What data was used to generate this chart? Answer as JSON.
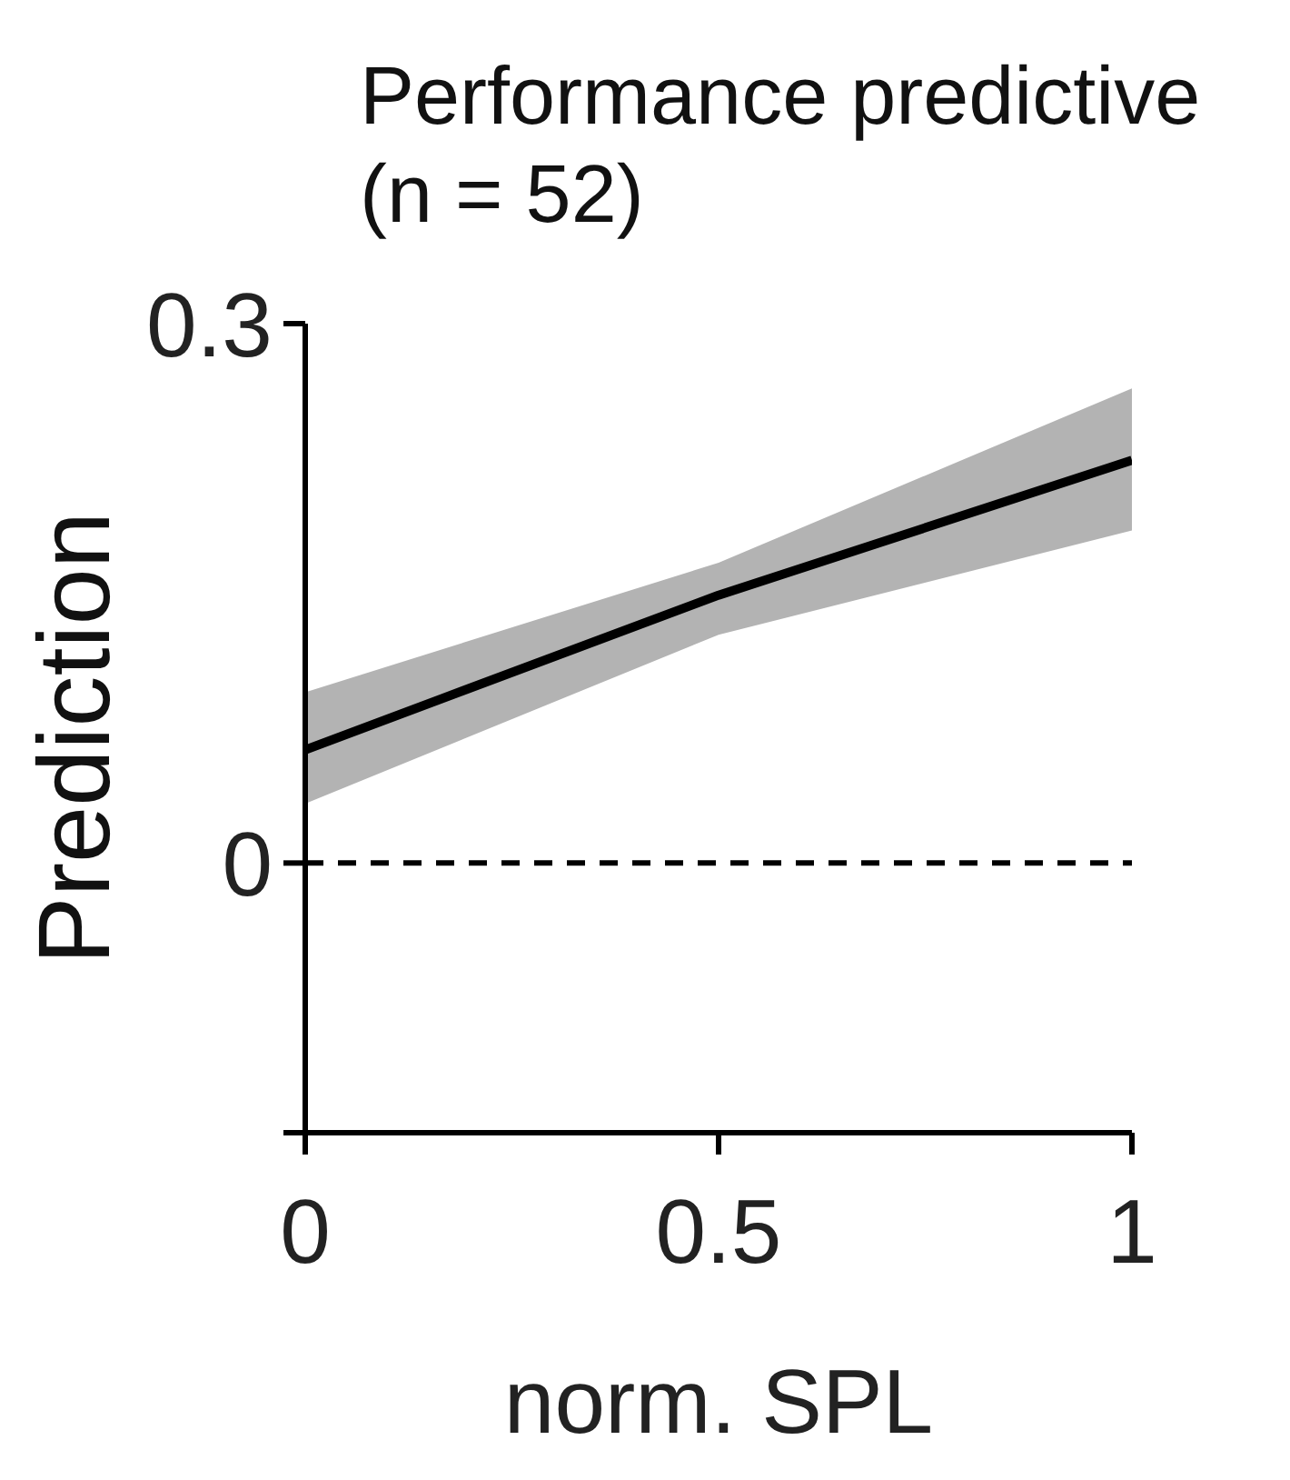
{
  "chart_data": {
    "type": "line",
    "title": "Performance predictive (n = 52)",
    "xlabel": "norm. SPL",
    "ylabel": "Prediction",
    "x": [
      0,
      0.5,
      1
    ],
    "series": [
      {
        "color": "#000000",
        "values": [
          0.063,
          0.149,
          0.224
        ],
        "lower": [
          0.033,
          0.127,
          0.185
        ],
        "upper": [
          0.095,
          0.167,
          0.264
        ]
      }
    ],
    "xlim": [
      0,
      1
    ],
    "xticks": [
      0,
      0.5,
      1
    ],
    "ylim": [
      -0.15,
      0.3
    ],
    "yticks": [
      {
        "value": -0.15,
        "label": null
      },
      0,
      0.3
    ],
    "ref_lines": [
      {
        "axis": "y",
        "value": 0,
        "color": "#000000",
        "line_style": "dashed"
      }
    ],
    "grid": false,
    "legend": false,
    "marker": "none",
    "line_style": "solid"
  }
}
